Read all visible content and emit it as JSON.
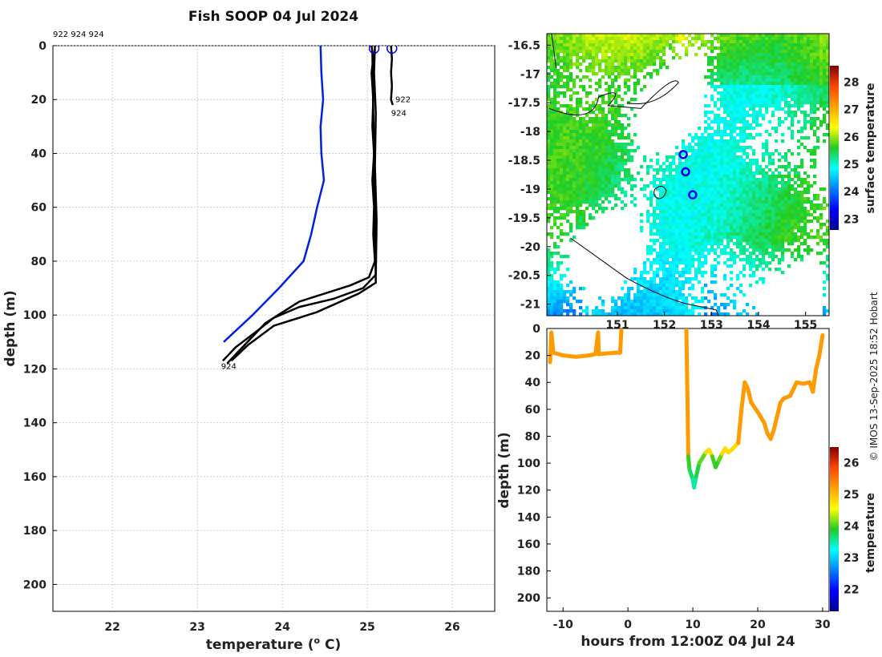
{
  "title": "Fish SOOP 04 Jul 2024",
  "drop_ids": "922 924 924",
  "credit": "© IMOS 13-Sep-2025 18:52 Hobart",
  "colors": {
    "profile": "#000000",
    "climatology": "#0022dd",
    "marker": "#0000ee",
    "grid": "#bbbbbb"
  },
  "chart_data": [
    {
      "type": "line",
      "name": "temperature-profile",
      "xlabel": "temperature (",
      "xlabel_sup": "o",
      "xlabel_tail": " C)",
      "ylabel": "depth (m)",
      "xlim": [
        21.3,
        26.5
      ],
      "ylim": [
        0,
        210
      ],
      "xticks": [
        22,
        23,
        24,
        25,
        26
      ],
      "yticks": [
        0,
        20,
        40,
        60,
        80,
        100,
        120,
        140,
        160,
        180,
        200
      ],
      "series": [
        {
          "name": "climatology",
          "color": "#0022dd",
          "points": [
            [
              24.45,
              0
            ],
            [
              24.46,
              10
            ],
            [
              24.48,
              20
            ],
            [
              24.45,
              30
            ],
            [
              24.46,
              40
            ],
            [
              24.49,
              50
            ],
            [
              24.41,
              60
            ],
            [
              24.34,
              70
            ],
            [
              24.25,
              80
            ],
            [
              23.96,
              90
            ],
            [
              23.65,
              100
            ],
            [
              23.31,
              110
            ]
          ]
        },
        {
          "name": "922",
          "color": "#000000",
          "points": [
            [
              25.28,
              0
            ],
            [
              25.29,
              5
            ],
            [
              25.28,
              10
            ],
            [
              25.29,
              15
            ],
            [
              25.28,
              20
            ],
            [
              25.3,
              22
            ]
          ]
        },
        {
          "name": "924-a",
          "color": "#000000",
          "points": [
            [
              25.05,
              0
            ],
            [
              25.07,
              5
            ],
            [
              25.05,
              10
            ],
            [
              25.07,
              20
            ],
            [
              25.06,
              30
            ],
            [
              25.08,
              40
            ],
            [
              25.06,
              50
            ],
            [
              25.08,
              60
            ],
            [
              25.07,
              70
            ],
            [
              25.09,
              80
            ],
            [
              25.02,
              86
            ],
            [
              24.8,
              89
            ],
            [
              24.5,
              92
            ],
            [
              24.2,
              95
            ],
            [
              24.0,
              99
            ],
            [
              23.8,
              103
            ],
            [
              23.65,
              108
            ],
            [
              23.5,
              113
            ],
            [
              23.35,
              118
            ]
          ]
        },
        {
          "name": "924-b",
          "color": "#000000",
          "points": [
            [
              25.09,
              0
            ],
            [
              25.08,
              10
            ],
            [
              25.1,
              25
            ],
            [
              25.09,
              45
            ],
            [
              25.11,
              65
            ],
            [
              25.1,
              85
            ],
            [
              24.95,
              90
            ],
            [
              24.6,
              94
            ],
            [
              24.2,
              97
            ],
            [
              23.9,
              101
            ],
            [
              23.7,
              106
            ],
            [
              23.45,
              112
            ],
            [
              23.3,
              117
            ]
          ]
        },
        {
          "name": "924-c",
          "color": "#000000",
          "points": [
            [
              25.06,
              2
            ],
            [
              25.1,
              88
            ],
            [
              24.9,
              92
            ],
            [
              24.4,
              99
            ],
            [
              23.9,
              104
            ],
            [
              23.6,
              111
            ],
            [
              23.4,
              117
            ]
          ]
        }
      ],
      "markers": [
        {
          "x": 25.08,
          "y": 1
        },
        {
          "x": 25.29,
          "y": 1
        }
      ],
      "labels": [
        {
          "text": "922",
          "x": 25.33,
          "y": 21
        },
        {
          "text": "924",
          "x": 25.28,
          "y": 26
        },
        {
          "text": "924",
          "x": 23.28,
          "y": 120
        }
      ]
    },
    {
      "type": "heatmap",
      "name": "sst-map",
      "colorbar_label": "surface temperature",
      "xlim": [
        149.5,
        155.5
      ],
      "ylim": [
        -21.2,
        -16.3
      ],
      "xticks": [
        151,
        152,
        153,
        154,
        155
      ],
      "xtick_labels": [
        "151",
        "152",
        "153",
        "154",
        "155"
      ],
      "yticks": [
        -16.5,
        -17,
        -17.5,
        -18,
        -18.5,
        -19,
        -19.5,
        -20,
        -20.5,
        -21
      ],
      "color_range": [
        22.6,
        28.6
      ],
      "cbar_ticks": [
        23,
        24,
        25,
        26,
        27,
        28
      ],
      "drops": [
        {
          "lon": 152.4,
          "lat": -18.4
        },
        {
          "lon": 152.45,
          "lat": -18.7
        },
        {
          "lon": 152.6,
          "lat": -19.1
        }
      ]
    },
    {
      "type": "scatter",
      "name": "depth-time",
      "xlabel": "hours from 12:00Z 04 Jul 24",
      "ylabel": "depth (m)",
      "colorbar_label": "temperature",
      "xlim": [
        -12.5,
        31
      ],
      "ylim": [
        0,
        210
      ],
      "xticks": [
        -10,
        0,
        10,
        20,
        30
      ],
      "yticks": [
        0,
        20,
        40,
        60,
        80,
        100,
        120,
        140,
        160,
        180,
        200
      ],
      "color_range": [
        21.3,
        26.5
      ],
      "cbar_ticks": [
        22,
        23,
        24,
        25,
        26
      ],
      "segments": [
        [
          [
            -12,
            25
          ],
          [
            -11.8,
            3
          ],
          [
            -11.5,
            18
          ],
          [
            -10,
            20
          ],
          [
            -8,
            21
          ],
          [
            -6,
            20
          ],
          [
            -5,
            19
          ],
          [
            -4.6,
            3
          ],
          [
            -4.5,
            19
          ],
          [
            -2,
            18
          ],
          [
            -1.2,
            18
          ],
          [
            -1.0,
            0
          ]
        ],
        [
          [
            9,
            0
          ],
          [
            9.2,
            60
          ],
          [
            9.3,
            95
          ],
          [
            9.5,
            105
          ],
          [
            10,
            112
          ],
          [
            10.2,
            118
          ],
          [
            10.5,
            110
          ],
          [
            11,
            100
          ],
          [
            12,
            92
          ],
          [
            12.5,
            90
          ],
          [
            13,
            95
          ],
          [
            13.5,
            103
          ],
          [
            14,
            98
          ],
          [
            14.5,
            93
          ],
          [
            15,
            89
          ],
          [
            15.5,
            92
          ],
          [
            16,
            90
          ],
          [
            17,
            85
          ],
          [
            17.5,
            60
          ],
          [
            18,
            40
          ],
          [
            18.5,
            45
          ],
          [
            19,
            55
          ],
          [
            20,
            62
          ],
          [
            21,
            70
          ],
          [
            21.5,
            78
          ],
          [
            22,
            82
          ],
          [
            22.5,
            75
          ],
          [
            23,
            65
          ],
          [
            23.5,
            55
          ],
          [
            24,
            52
          ],
          [
            25,
            50
          ],
          [
            25.5,
            45
          ],
          [
            26,
            40
          ],
          [
            27,
            41
          ],
          [
            28,
            40
          ],
          [
            28.5,
            47
          ],
          [
            29,
            30
          ],
          [
            29.5,
            20
          ],
          [
            30,
            5
          ]
        ]
      ]
    }
  ]
}
